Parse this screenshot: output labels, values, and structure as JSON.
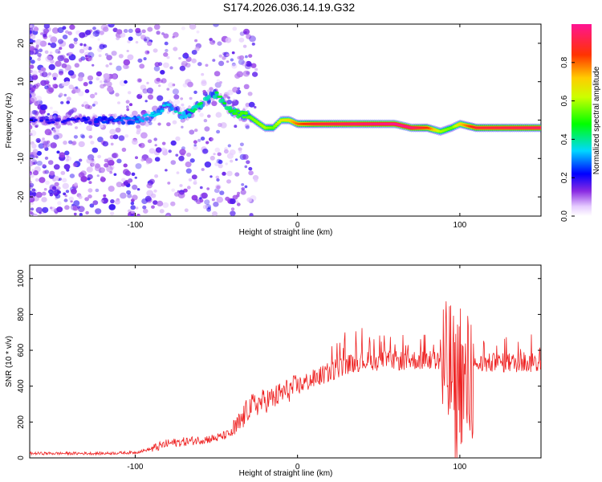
{
  "figure_title": "S174.2026.036.14.19.G32",
  "chart_data": [
    {
      "type": "heatmap",
      "title": "S174.2026.036.14.19.G32",
      "xlabel": "Height of straight line (km)",
      "ylabel": "Frequency (Hz)",
      "xlim": [
        -165,
        150
      ],
      "ylim": [
        -25,
        25
      ],
      "xticks": [
        -100,
        0,
        100
      ],
      "yticks": [
        -20,
        -10,
        0,
        10,
        20
      ],
      "colorbar": {
        "label": "Normalized spectral amplitude",
        "range": [
          0.0,
          1.0
        ],
        "ticks": [
          0.0,
          0.2,
          0.4,
          0.6,
          0.8
        ]
      },
      "ridge": {
        "x": [
          -165,
          -140,
          -120,
          -100,
          -90,
          -80,
          -70,
          -60,
          -50,
          -40,
          -30,
          -20,
          -15,
          -10,
          -5,
          0,
          10,
          30,
          60,
          70,
          80,
          88,
          95,
          100,
          110,
          150
        ],
        "freq": [
          0,
          0,
          0,
          0,
          1,
          4,
          1,
          4,
          7,
          2,
          1,
          -2,
          -2,
          0,
          0,
          -1,
          -1,
          -1,
          -1,
          -2,
          -2,
          -3,
          -2,
          -1,
          -2,
          -2
        ],
        "amplitude": [
          0.2,
          0.2,
          0.25,
          0.3,
          0.35,
          0.35,
          0.4,
          0.45,
          0.45,
          0.5,
          0.55,
          0.6,
          0.55,
          0.65,
          0.7,
          0.8,
          0.9,
          0.95,
          1.0,
          0.98,
          0.85,
          0.6,
          0.55,
          0.7,
          0.9,
          0.95
        ]
      }
    },
    {
      "type": "line",
      "xlabel": "Height of straight line (km)",
      "ylabel": "SNR (10 * v/v)",
      "xlim": [
        -165,
        150
      ],
      "ylim": [
        0,
        1075
      ],
      "xticks": [
        -100,
        0,
        100
      ],
      "yticks": [
        0,
        200,
        400,
        600,
        800,
        1000
      ],
      "series": [
        {
          "name": "SNR",
          "color": "#ee2222",
          "x": [
            -165,
            -140,
            -120,
            -100,
            -90,
            -80,
            -70,
            -60,
            -50,
            -40,
            -35,
            -30,
            -25,
            -20,
            -15,
            -10,
            -5,
            0,
            5,
            10,
            20,
            30,
            40,
            50,
            60,
            70,
            80,
            88,
            92,
            95,
            97,
            100,
            103,
            106,
            110,
            120,
            130,
            140,
            150
          ],
          "values": [
            25,
            25,
            25,
            30,
            50,
            80,
            90,
            100,
            110,
            140,
            200,
            280,
            300,
            320,
            330,
            360,
            380,
            400,
            420,
            440,
            480,
            520,
            540,
            540,
            540,
            545,
            545,
            540,
            450,
            500,
            300,
            520,
            350,
            450,
            520,
            530,
            530,
            530,
            530
          ]
        }
      ]
    }
  ]
}
